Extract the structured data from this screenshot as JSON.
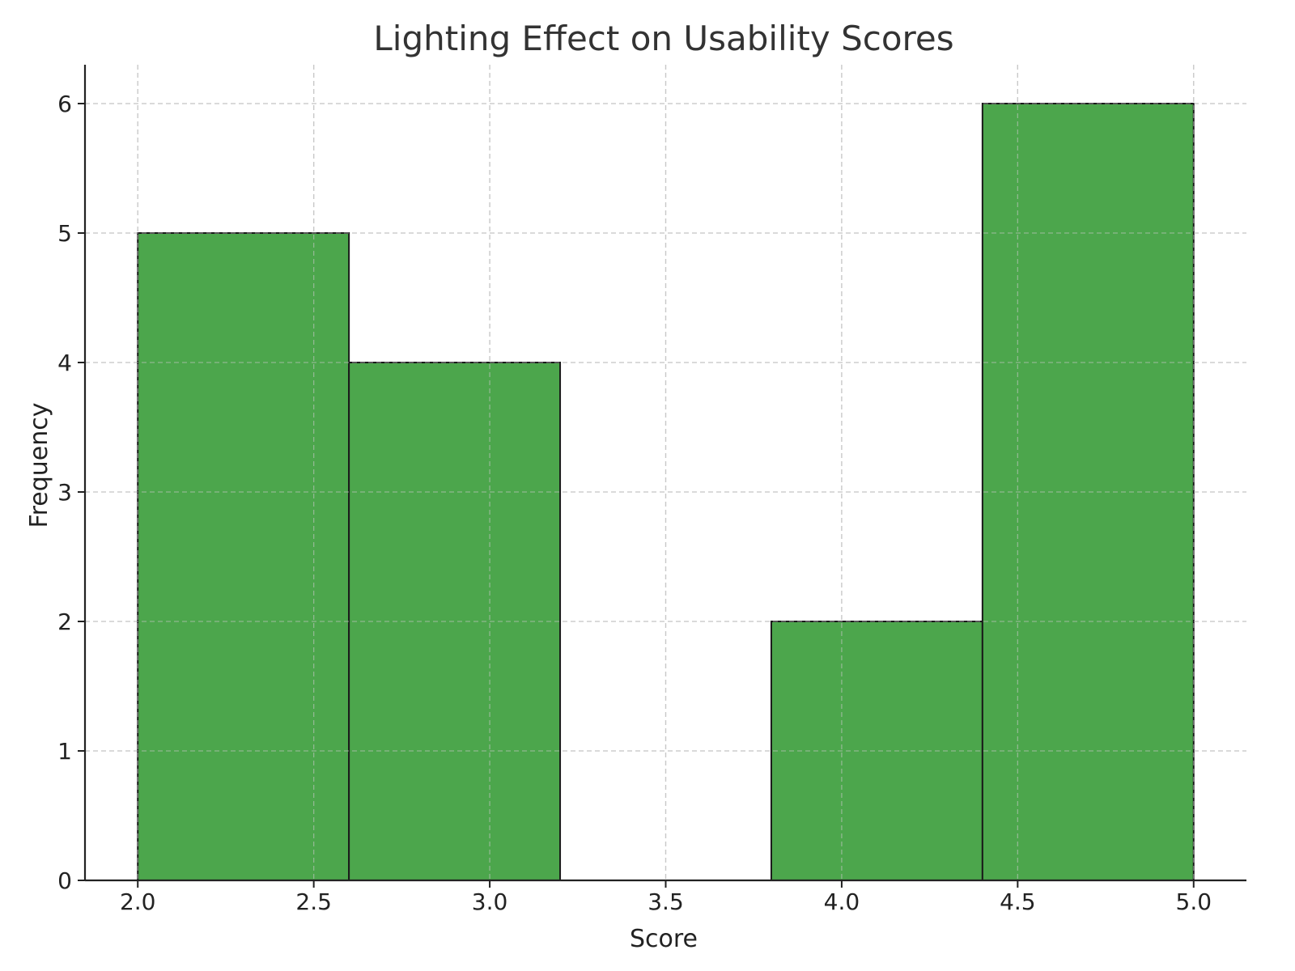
{
  "chart_data": {
    "type": "bar",
    "title": "Lighting Effect on Usability Scores",
    "xlabel": "Score",
    "ylabel": "Frequency",
    "xlim": [
      1.85,
      5.15
    ],
    "ylim": [
      0,
      6.3
    ],
    "xticks": [
      "2.0",
      "2.5",
      "3.0",
      "3.5",
      "4.0",
      "4.5",
      "5.0"
    ],
    "yticks": [
      "0",
      "1",
      "2",
      "3",
      "4",
      "5",
      "6"
    ],
    "bins": [
      {
        "start": 2.0,
        "end": 2.6,
        "value": 5
      },
      {
        "start": 2.6,
        "end": 3.2,
        "value": 4
      },
      {
        "start": 3.2,
        "end": 3.8,
        "value": 0
      },
      {
        "start": 3.8,
        "end": 4.4,
        "value": 2
      },
      {
        "start": 4.4,
        "end": 5.0,
        "value": 6
      }
    ],
    "bar_color": "#4ca64c",
    "edge_color": "#1a1a1a",
    "grid": true,
    "legend": false
  }
}
